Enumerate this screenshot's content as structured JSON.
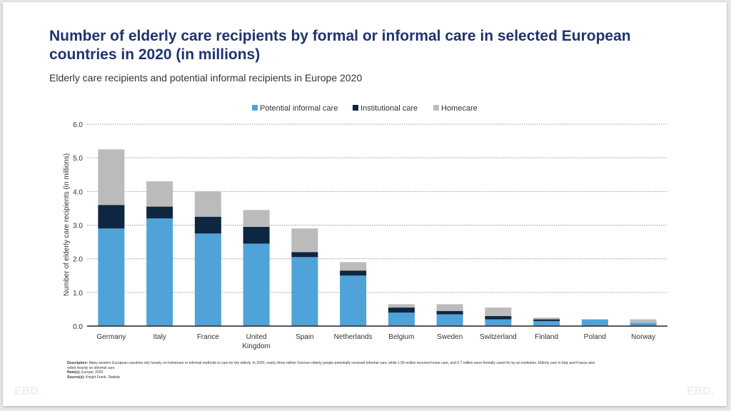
{
  "title": "Number of elderly care recipients by formal or informal care in selected European countries in 2020 (in millions)",
  "subtitle": "Elderly care recipients and potential informal recipients in Europe 2020",
  "notes": {
    "description_label": "Description:",
    "description": "Many western European countries rely heavily on homecare or informal methods to care for the elderly. In 2020, nearly three million German elderly people potentially received informal care, while 1.65 million received home care, and 0.7 million were formally cared for by an institution. Elderly care in Italy and France also relied heavily on informal care.",
    "note_label": "Note(s):",
    "note": "Europe; 2020",
    "source_label": "Source(s):",
    "source": "Knight Frank, Statista"
  },
  "logo": "EBD.",
  "chart_data": {
    "type": "bar",
    "stacked": true,
    "ylabel": "Number of elderly care recipients (in millions)",
    "xlabel": "",
    "ylim": [
      0,
      6
    ],
    "yticks": [
      "0.0",
      "1.0",
      "2.0",
      "3.0",
      "4.0",
      "5.0",
      "6.0"
    ],
    "grid": true,
    "legend": "top",
    "categories": [
      "Germany",
      "Italy",
      "France",
      "United Kingdom",
      "Spain",
      "Netherlands",
      "Belgium",
      "Sweden",
      "Switzerland",
      "Finland",
      "Poland",
      "Norway"
    ],
    "series": [
      {
        "name": "Potential informal care",
        "color": "#4fa3d8",
        "values": [
          2.9,
          3.2,
          2.75,
          2.45,
          2.05,
          1.5,
          0.4,
          0.35,
          0.2,
          0.15,
          0.2,
          0.1
        ]
      },
      {
        "name": "Institutional care",
        "color": "#0f2640",
        "values": [
          0.7,
          0.35,
          0.5,
          0.5,
          0.15,
          0.15,
          0.15,
          0.1,
          0.1,
          0.05,
          0,
          0
        ]
      },
      {
        "name": "Homecare",
        "color": "#bbbbbb",
        "values": [
          1.65,
          0.75,
          0.75,
          0.5,
          0.7,
          0.25,
          0.1,
          0.2,
          0.25,
          0.05,
          0,
          0.1
        ]
      }
    ]
  }
}
